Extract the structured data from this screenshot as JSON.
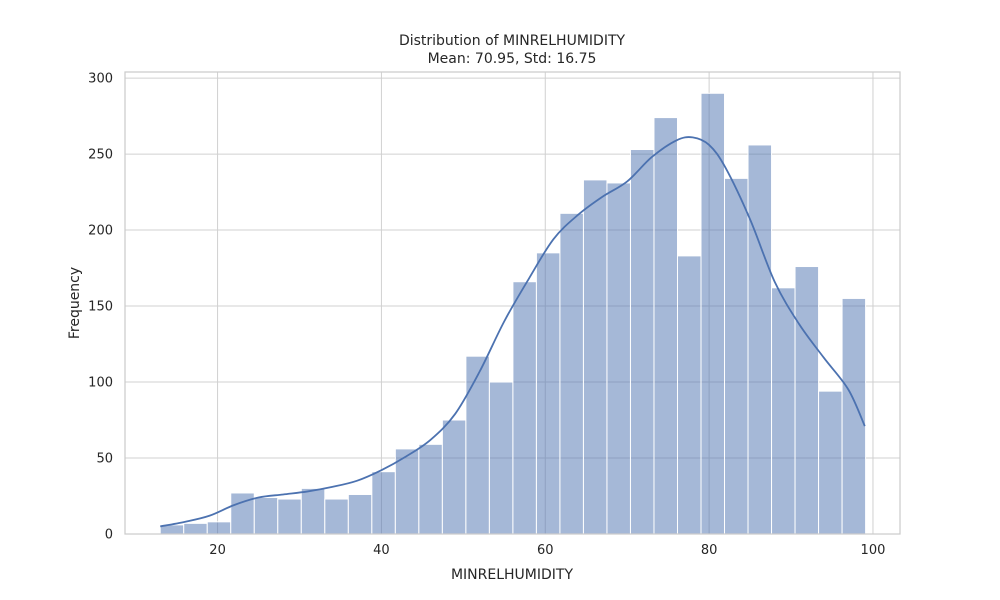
{
  "chart_data": {
    "type": "bar",
    "subtype": "histogram-with-kde",
    "title": "Distribution of MINRELHUMIDITY",
    "subtitle": "Mean: 70.95, Std: 16.75",
    "xlabel": "MINRELHUMIDITY",
    "ylabel": "Frequency",
    "xlim": [
      8.7,
      103.3
    ],
    "ylim": [
      0,
      304
    ],
    "xticks": [
      20,
      40,
      60,
      80,
      100
    ],
    "yticks": [
      0,
      50,
      100,
      150,
      200,
      250,
      300
    ],
    "grid": true,
    "bin_start": 13,
    "bin_width": 2.87,
    "values": [
      6,
      7,
      8,
      27,
      24,
      23,
      30,
      23,
      26,
      41,
      56,
      59,
      75,
      117,
      100,
      166,
      185,
      211,
      233,
      231,
      253,
      274,
      183,
      290,
      234,
      256,
      162,
      176,
      94,
      155
    ],
    "kde": {
      "x": [
        13,
        16,
        19,
        22,
        25,
        28,
        31,
        34,
        37,
        40,
        43,
        46,
        49,
        52,
        55,
        58,
        61,
        64,
        67,
        70,
        73,
        76,
        78,
        80,
        82,
        85,
        88,
        91,
        94,
        97,
        99
      ],
      "y": [
        5,
        8,
        12,
        19,
        24,
        26,
        28,
        31,
        35,
        42,
        51,
        62,
        79,
        107,
        140,
        168,
        194,
        210,
        222,
        232,
        248,
        259,
        261,
        256,
        241,
        207,
        166,
        138,
        116,
        95,
        71
      ]
    },
    "colors": {
      "bar": "#4c72b0",
      "bar_opacity": 0.5,
      "kde": "#4c72b0"
    }
  }
}
